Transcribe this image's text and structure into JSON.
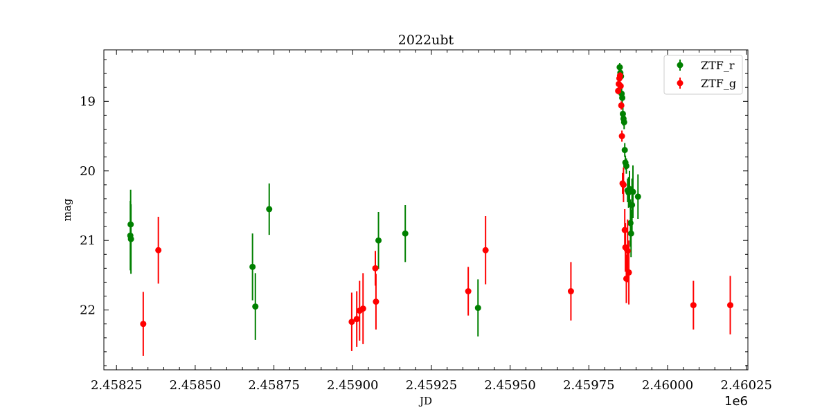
{
  "chart_data": {
    "type": "scatter",
    "title": "2022ubt",
    "xlabel": "JD",
    "ylabel": "mag",
    "x_offset_label": "1e6",
    "xlim": [
      2.45821,
      2.460255
    ],
    "ylim": [
      22.86,
      18.26
    ],
    "y_inverted": true,
    "grid": false,
    "legend_position": "upper right",
    "x_ticks": [
      2.45825,
      2.4585,
      2.45875,
      2.459,
      2.45925,
      2.4595,
      2.45975,
      2.46,
      2.46025
    ],
    "x_tick_labels": [
      "2.45825",
      "2.45850",
      "2.45875",
      "2.45900",
      "2.45925",
      "2.45950",
      "2.45975",
      "2.46000",
      "2.46025"
    ],
    "y_ticks": [
      19,
      20,
      21,
      22
    ],
    "y_tick_labels": [
      "19",
      "20",
      "21",
      "22"
    ],
    "series": [
      {
        "name": "ZTF_r",
        "color": "#008000",
        "points": [
          {
            "x": 2.458294,
            "y": 20.93,
            "err": 0.5
          },
          {
            "x": 2.458295,
            "y": 20.77,
            "err": 0.5
          },
          {
            "x": 2.458296,
            "y": 20.98,
            "err": 0.5
          },
          {
            "x": 2.458682,
            "y": 21.38,
            "err": 0.48
          },
          {
            "x": 2.458691,
            "y": 21.95,
            "err": 0.48
          },
          {
            "x": 2.458735,
            "y": 20.55,
            "err": 0.37
          },
          {
            "x": 2.459082,
            "y": 21.0,
            "err": 0.41
          },
          {
            "x": 2.459167,
            "y": 20.9,
            "err": 0.41
          },
          {
            "x": 2.459398,
            "y": 21.97,
            "err": 0.41
          },
          {
            "x": 2.459848,
            "y": 18.51,
            "err": 0.06
          },
          {
            "x": 2.45985,
            "y": 18.59,
            "err": 0.06
          },
          {
            "x": 2.459852,
            "y": 18.64,
            "err": 0.06
          },
          {
            "x": 2.459854,
            "y": 18.89,
            "err": 0.08
          },
          {
            "x": 2.459856,
            "y": 18.95,
            "err": 0.08
          },
          {
            "x": 2.459858,
            "y": 19.18,
            "err": 0.09
          },
          {
            "x": 2.45986,
            "y": 19.25,
            "err": 0.1
          },
          {
            "x": 2.459862,
            "y": 19.3,
            "err": 0.1
          },
          {
            "x": 2.459864,
            "y": 19.7,
            "err": 0.1
          },
          {
            "x": 2.459866,
            "y": 19.88,
            "err": 0.1
          },
          {
            "x": 2.459869,
            "y": 19.93,
            "err": 0.11
          },
          {
            "x": 2.459873,
            "y": 20.28,
            "err": 0.17
          },
          {
            "x": 2.459876,
            "y": 20.31,
            "err": 0.22
          },
          {
            "x": 2.459879,
            "y": 20.26,
            "err": 0.26
          },
          {
            "x": 2.459882,
            "y": 20.75,
            "err": 0.34
          },
          {
            "x": 2.459884,
            "y": 20.9,
            "err": 0.34
          },
          {
            "x": 2.459887,
            "y": 20.49,
            "err": 0.38
          },
          {
            "x": 2.45989,
            "y": 20.3,
            "err": 0.38
          },
          {
            "x": 2.459906,
            "y": 20.37,
            "err": 0.32
          }
        ]
      },
      {
        "name": "ZTF_g",
        "color": "#ff0000",
        "points": [
          {
            "x": 2.458335,
            "y": 22.2,
            "err": 0.46
          },
          {
            "x": 2.458383,
            "y": 21.14,
            "err": 0.48
          },
          {
            "x": 2.458997,
            "y": 22.17,
            "err": 0.42
          },
          {
            "x": 2.459013,
            "y": 22.13,
            "err": 0.4
          },
          {
            "x": 2.459022,
            "y": 22.01,
            "err": 0.43
          },
          {
            "x": 2.459033,
            "y": 21.98,
            "err": 0.51
          },
          {
            "x": 2.459072,
            "y": 21.4,
            "err": 0.25
          },
          {
            "x": 2.459074,
            "y": 21.88,
            "err": 0.4
          },
          {
            "x": 2.459367,
            "y": 21.73,
            "err": 0.35
          },
          {
            "x": 2.459422,
            "y": 21.14,
            "err": 0.49
          },
          {
            "x": 2.459693,
            "y": 21.73,
            "err": 0.42
          },
          {
            "x": 2.459843,
            "y": 18.85,
            "err": 0.05
          },
          {
            "x": 2.459845,
            "y": 18.75,
            "err": 0.05
          },
          {
            "x": 2.459847,
            "y": 18.67,
            "err": 0.05
          },
          {
            "x": 2.459849,
            "y": 18.63,
            "err": 0.05
          },
          {
            "x": 2.459851,
            "y": 18.78,
            "err": 0.05
          },
          {
            "x": 2.459853,
            "y": 19.06,
            "err": 0.06
          },
          {
            "x": 2.459855,
            "y": 19.5,
            "err": 0.08
          },
          {
            "x": 2.459857,
            "y": 20.18,
            "err": 0.15
          },
          {
            "x": 2.45986,
            "y": 20.2,
            "err": 0.25
          },
          {
            "x": 2.459864,
            "y": 20.85,
            "err": 0.3
          },
          {
            "x": 2.459866,
            "y": 21.1,
            "err": 0.35
          },
          {
            "x": 2.459869,
            "y": 21.55,
            "err": 0.35
          },
          {
            "x": 2.459873,
            "y": 21.15,
            "err": 0.45
          },
          {
            "x": 2.459877,
            "y": 21.46,
            "err": 0.46
          },
          {
            "x": 2.460082,
            "y": 21.93,
            "err": 0.35
          },
          {
            "x": 2.460199,
            "y": 21.93,
            "err": 0.42
          }
        ]
      }
    ]
  }
}
